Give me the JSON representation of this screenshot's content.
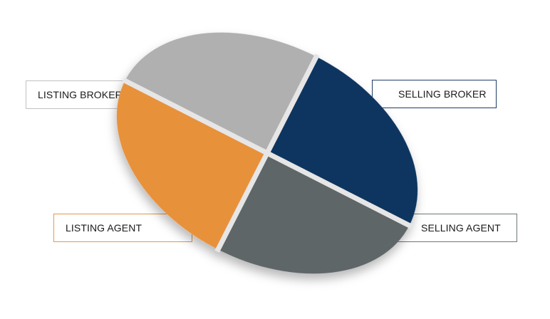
{
  "diagram": {
    "segments": [
      {
        "id": "listing-broker",
        "label": "LISTING BROKER",
        "color": "#b0b0b0"
      },
      {
        "id": "selling-broker",
        "label": "SELLING BROKER",
        "color": "#0e3461"
      },
      {
        "id": "selling-agent",
        "label": "SELLING AGENT",
        "color": "#5f6668"
      },
      {
        "id": "listing-agent",
        "label": "LISTING AGENT",
        "color": "#e8913b"
      }
    ],
    "divider_color": "#e6e6e6"
  }
}
